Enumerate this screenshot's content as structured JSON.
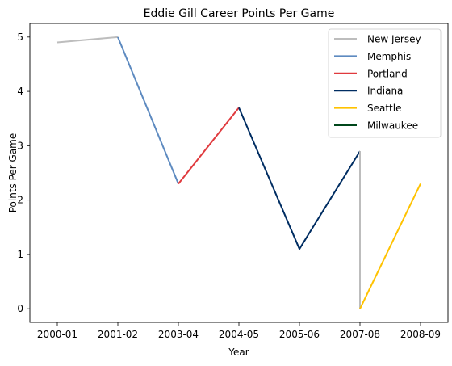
{
  "chart_data": {
    "type": "line",
    "title": "Eddie Gill Career Points Per Game",
    "xlabel": "Year",
    "ylabel": "Points Per Game",
    "categories": [
      "2000-01",
      "2001-02",
      "2003-04",
      "2004-05",
      "2005-06",
      "2007-08",
      "2008-09"
    ],
    "yticks": [
      0,
      1,
      2,
      3,
      4,
      5
    ],
    "ylim": [
      -0.25,
      5.25
    ],
    "grid": false,
    "legend_position": "top-right",
    "series": [
      {
        "name": "New Jersey",
        "color": "#bdbdbd",
        "points": [
          {
            "x": "2000-01",
            "y": 4.9
          },
          {
            "x": "2001-02",
            "y": 5.0
          }
        ]
      },
      {
        "name": "Memphis",
        "color": "#5d8ac0",
        "points": [
          {
            "x": "2001-02",
            "y": 5.0
          },
          {
            "x": "2003-04",
            "y": 2.3
          }
        ]
      },
      {
        "name": "Portland",
        "color": "#e03a3e",
        "points": [
          {
            "x": "2003-04",
            "y": 2.3
          },
          {
            "x": "2004-05",
            "y": 3.7
          }
        ]
      },
      {
        "name": "Indiana",
        "color": "#002d62",
        "points": [
          {
            "x": "2004-05",
            "y": 3.7
          },
          {
            "x": "2005-06",
            "y": 1.1
          },
          {
            "x": "2007-08",
            "y": 2.9
          }
        ]
      },
      {
        "name": "New Jersey",
        "color": "#bdbdbd",
        "legend": false,
        "points": [
          {
            "x": "2007-08",
            "y": 2.9
          },
          {
            "x": "2007-08",
            "y": 0.0
          }
        ]
      },
      {
        "name": "Seattle",
        "color": "#ffc200",
        "points": [
          {
            "x": "2007-08",
            "y": 0.0
          },
          {
            "x": "2008-09",
            "y": 2.3
          }
        ]
      },
      {
        "name": "Milwaukee",
        "color": "#00471b",
        "points": []
      }
    ]
  }
}
